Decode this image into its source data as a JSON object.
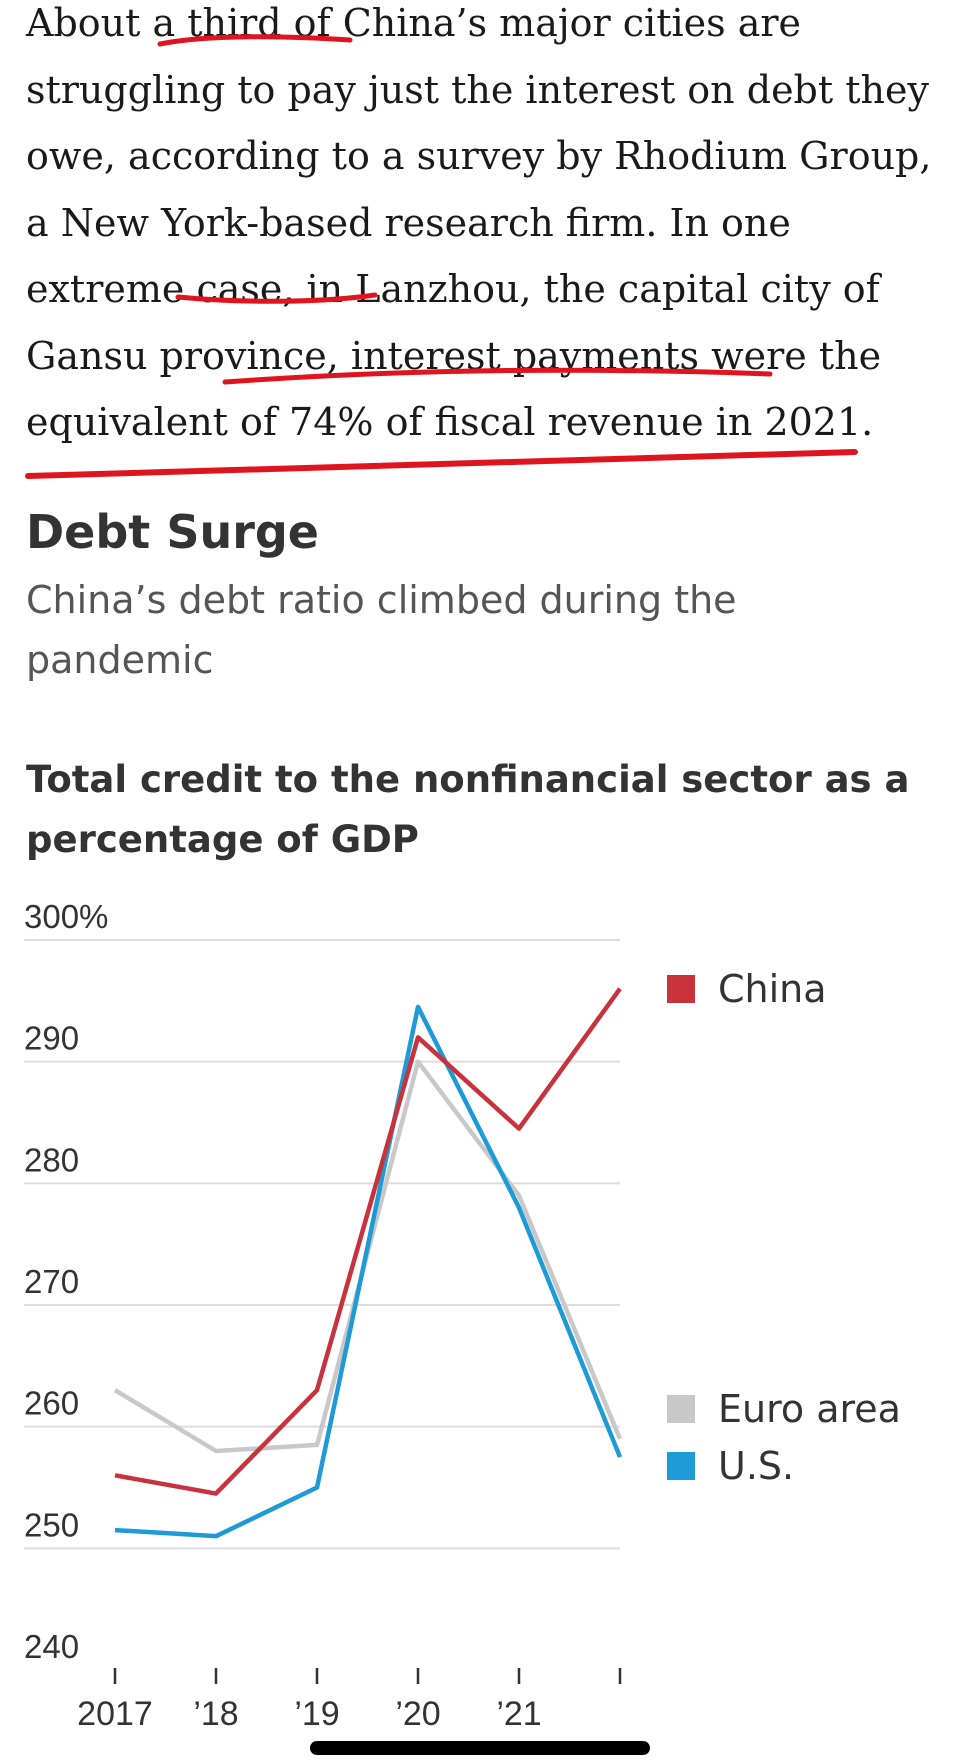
{
  "article": {
    "paragraph": "About a third of China’s major cities are struggling to pay just the interest on debt they owe, according to a survey by Rhodium Group, a New York-based research firm. In one extreme case, in Lanzhou, the capital city of Gansu province, interest payments were the equivalent of 74% of fiscal revenue in 2021."
  },
  "annotation_color": "#e0141e",
  "chart_data": {
    "type": "line",
    "title": "Debt Surge",
    "subtitle": "China’s debt ratio climbed during the pandemic",
    "chart_title": "Total credit to the nonfinancial sector as a percentage of GDP",
    "x": [
      2017,
      2018,
      2019,
      2020,
      2021,
      2022
    ],
    "x_tick_labels": [
      "2017",
      "’18",
      "’19",
      "’20",
      "’21",
      ""
    ],
    "y_ticks": [
      "300%",
      "290",
      "280",
      "270",
      "260",
      "250",
      "240"
    ],
    "ylim": [
      240,
      300
    ],
    "grid": true,
    "legend_position": "right",
    "series": [
      {
        "name": "China",
        "color": "#c8323c",
        "values": [
          256,
          254.5,
          263,
          292,
          284.5,
          296
        ]
      },
      {
        "name": "Euro area",
        "color": "#c8c8c8",
        "values": [
          263,
          258,
          258.5,
          290,
          279,
          259
        ]
      },
      {
        "name": "U.S.",
        "color": "#1e9ad6",
        "values": [
          251.5,
          251,
          255,
          294.5,
          278,
          257.5
        ]
      }
    ]
  }
}
